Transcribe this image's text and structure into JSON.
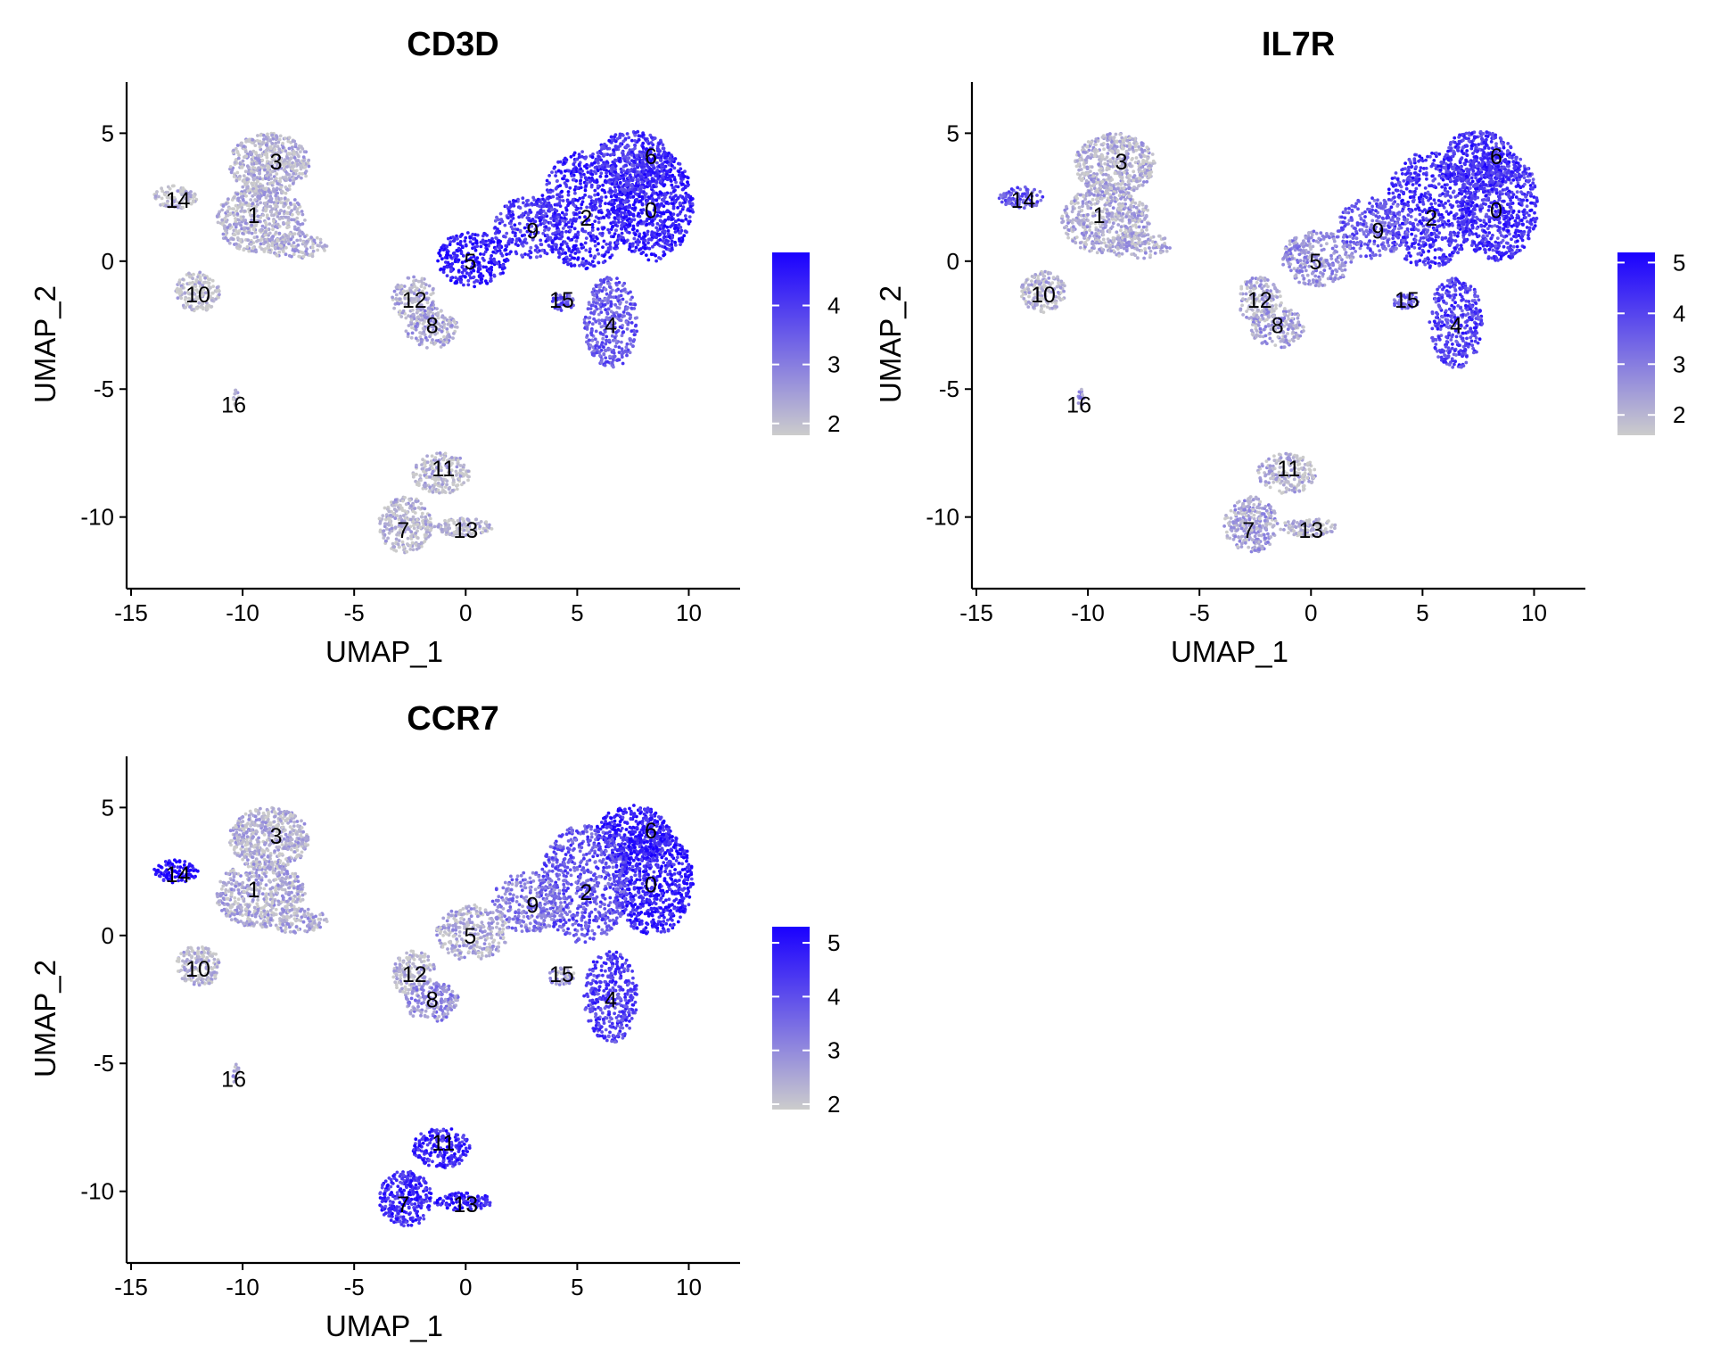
{
  "figure": {
    "axis_x_label": "UMAP_1",
    "axis_y_label": "UMAP_2",
    "low_color": "#cccccc",
    "high_color": "#1a00ff"
  },
  "chart_data": [
    {
      "type": "scatter",
      "title": "CD3D",
      "xlabel": "UMAP_1",
      "ylabel": "UMAP_2",
      "xlim": [
        -15.2,
        12.3
      ],
      "ylim": [
        -12.8,
        7
      ],
      "xticks": [
        -15,
        -10,
        -5,
        0,
        5,
        10
      ],
      "yticks": [
        5,
        0,
        -5,
        -10
      ],
      "color_scale": {
        "min": 1.8,
        "max": 4.9,
        "ticks": [
          2,
          3,
          4
        ]
      },
      "expression_by_cluster": {
        "0": 0.85,
        "1": 0.12,
        "2": 0.8,
        "3": 0.1,
        "4": 0.55,
        "5": 0.9,
        "6": 0.75,
        "7": 0.08,
        "8": 0.2,
        "9": 0.75,
        "10": 0.05,
        "11": 0.08,
        "12": 0.15,
        "13": 0.08,
        "14": 0.05,
        "15": 0.6,
        "16": 0.05
      },
      "clusters": [
        {
          "label": "0",
          "x": 8.3,
          "y": 2.0
        },
        {
          "label": "1",
          "x": -9.5,
          "y": 1.8
        },
        {
          "label": "2",
          "x": 5.4,
          "y": 1.7
        },
        {
          "label": "3",
          "x": -8.5,
          "y": 3.9
        },
        {
          "label": "4",
          "x": 6.5,
          "y": -2.5
        },
        {
          "label": "5",
          "x": 0.2,
          "y": 0.0
        },
        {
          "label": "6",
          "x": 8.3,
          "y": 4.1
        },
        {
          "label": "7",
          "x": -2.8,
          "y": -10.5
        },
        {
          "label": "8",
          "x": -1.5,
          "y": -2.5
        },
        {
          "label": "9",
          "x": 3.0,
          "y": 1.2
        },
        {
          "label": "10",
          "x": -12.0,
          "y": -1.3
        },
        {
          "label": "11",
          "x": -1.0,
          "y": -8.1
        },
        {
          "label": "12",
          "x": -2.3,
          "y": -1.5
        },
        {
          "label": "13",
          "x": 0.0,
          "y": -10.5
        },
        {
          "label": "14",
          "x": -12.9,
          "y": 2.4
        },
        {
          "label": "15",
          "x": 4.3,
          "y": -1.5
        },
        {
          "label": "16",
          "x": -10.4,
          "y": -5.6
        }
      ]
    },
    {
      "type": "scatter",
      "title": "IL7R",
      "xlabel": "UMAP_1",
      "ylabel": "UMAP_2",
      "xlim": [
        -15.2,
        12.3
      ],
      "ylim": [
        -12.8,
        7
      ],
      "xticks": [
        -15,
        -10,
        -5,
        0,
        5,
        10
      ],
      "yticks": [
        5,
        0,
        -5,
        -10
      ],
      "color_scale": {
        "min": 1.6,
        "max": 5.2,
        "ticks": [
          2,
          3,
          4,
          5
        ]
      },
      "expression_by_cluster": {
        "0": 0.75,
        "1": 0.15,
        "2": 0.75,
        "3": 0.12,
        "4": 0.7,
        "5": 0.3,
        "6": 0.75,
        "7": 0.2,
        "8": 0.2,
        "9": 0.55,
        "10": 0.1,
        "11": 0.1,
        "12": 0.15,
        "13": 0.1,
        "14": 0.6,
        "15": 0.45,
        "16": 0.3
      },
      "clusters": [
        {
          "label": "0",
          "x": 8.3,
          "y": 2.0
        },
        {
          "label": "1",
          "x": -9.5,
          "y": 1.8
        },
        {
          "label": "2",
          "x": 5.4,
          "y": 1.7
        },
        {
          "label": "3",
          "x": -8.5,
          "y": 3.9
        },
        {
          "label": "4",
          "x": 6.5,
          "y": -2.5
        },
        {
          "label": "5",
          "x": 0.2,
          "y": 0.0
        },
        {
          "label": "6",
          "x": 8.3,
          "y": 4.1
        },
        {
          "label": "7",
          "x": -2.8,
          "y": -10.5
        },
        {
          "label": "8",
          "x": -1.5,
          "y": -2.5
        },
        {
          "label": "9",
          "x": 3.0,
          "y": 1.2
        },
        {
          "label": "10",
          "x": -12.0,
          "y": -1.3
        },
        {
          "label": "11",
          "x": -1.0,
          "y": -8.1
        },
        {
          "label": "12",
          "x": -2.3,
          "y": -1.5
        },
        {
          "label": "13",
          "x": 0.0,
          "y": -10.5
        },
        {
          "label": "14",
          "x": -12.9,
          "y": 2.4
        },
        {
          "label": "15",
          "x": 4.3,
          "y": -1.5
        },
        {
          "label": "16",
          "x": -10.4,
          "y": -5.6
        }
      ]
    },
    {
      "type": "scatter",
      "title": "CCR7",
      "xlabel": "UMAP_1",
      "ylabel": "UMAP_2",
      "xlim": [
        -15.2,
        12.3
      ],
      "ylim": [
        -12.8,
        7
      ],
      "xticks": [
        -15,
        -10,
        -5,
        0,
        5,
        10
      ],
      "yticks": [
        5,
        0,
        -5,
        -10
      ],
      "color_scale": {
        "min": 1.9,
        "max": 5.3,
        "ticks": [
          2,
          3,
          4,
          5
        ]
      },
      "expression_by_cluster": {
        "0": 0.85,
        "1": 0.15,
        "2": 0.6,
        "3": 0.12,
        "4": 0.7,
        "5": 0.15,
        "6": 0.85,
        "7": 0.8,
        "8": 0.3,
        "9": 0.4,
        "10": 0.08,
        "11": 0.8,
        "12": 0.1,
        "13": 0.85,
        "14": 0.95,
        "15": 0.2,
        "16": 0.2
      },
      "clusters": [
        {
          "label": "0",
          "x": 8.3,
          "y": 2.0
        },
        {
          "label": "1",
          "x": -9.5,
          "y": 1.8
        },
        {
          "label": "2",
          "x": 5.4,
          "y": 1.7
        },
        {
          "label": "3",
          "x": -8.5,
          "y": 3.9
        },
        {
          "label": "4",
          "x": 6.5,
          "y": -2.5
        },
        {
          "label": "5",
          "x": 0.2,
          "y": 0.0
        },
        {
          "label": "6",
          "x": 8.3,
          "y": 4.1
        },
        {
          "label": "7",
          "x": -2.8,
          "y": -10.5
        },
        {
          "label": "8",
          "x": -1.5,
          "y": -2.5
        },
        {
          "label": "9",
          "x": 3.0,
          "y": 1.2
        },
        {
          "label": "10",
          "x": -12.0,
          "y": -1.3
        },
        {
          "label": "11",
          "x": -1.0,
          "y": -8.1
        },
        {
          "label": "12",
          "x": -2.3,
          "y": -1.5
        },
        {
          "label": "13",
          "x": 0.0,
          "y": -10.5
        },
        {
          "label": "14",
          "x": -12.9,
          "y": 2.4
        },
        {
          "label": "15",
          "x": 4.3,
          "y": -1.5
        },
        {
          "label": "16",
          "x": -10.4,
          "y": -5.6
        }
      ]
    }
  ]
}
